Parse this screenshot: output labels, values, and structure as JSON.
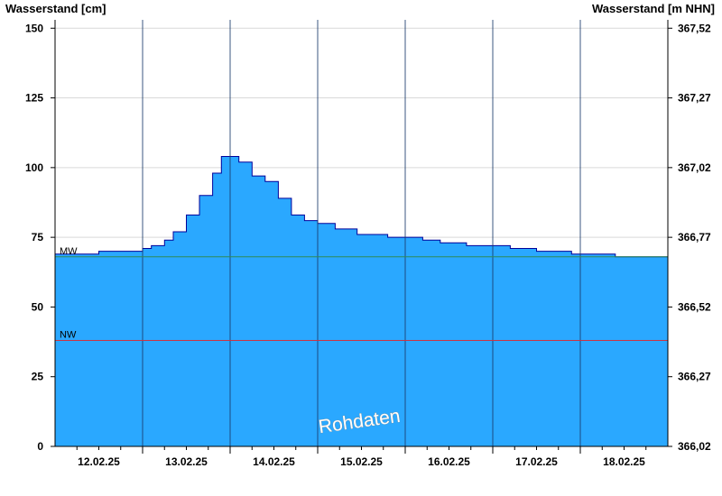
{
  "chart_data": {
    "type": "area",
    "ylabel_left": "Wasserstand [cm]",
    "ylabel_right": "Wasserstand [m NHN]",
    "watermark": "Rohdaten",
    "ylim": [
      0,
      153
    ],
    "left_ticks": [
      {
        "value": 0,
        "label": "0"
      },
      {
        "value": 25,
        "label": "25"
      },
      {
        "value": 50,
        "label": "50"
      },
      {
        "value": 75,
        "label": "75"
      },
      {
        "value": 100,
        "label": "100"
      },
      {
        "value": 125,
        "label": "125"
      },
      {
        "value": 150,
        "label": "150"
      }
    ],
    "right_ticks": [
      {
        "value": 0,
        "label": "366,02"
      },
      {
        "value": 25,
        "label": "366,27"
      },
      {
        "value": 50,
        "label": "366,52"
      },
      {
        "value": 75,
        "label": "366,77"
      },
      {
        "value": 100,
        "label": "367,02"
      },
      {
        "value": 125,
        "label": "367,27"
      },
      {
        "value": 150,
        "label": "367,52"
      }
    ],
    "x_range_days": [
      0,
      7
    ],
    "day_labels": [
      "12.02.25",
      "13.02.25",
      "14.02.25",
      "15.02.25",
      "16.02.25",
      "17.02.25",
      "18.02.25"
    ],
    "day_label_positions_days": [
      0.5,
      1.5,
      2.5,
      3.5,
      4.5,
      5.5,
      6.5
    ],
    "day_boundaries_days": [
      1,
      2,
      3,
      4,
      5,
      6
    ],
    "reference_lines": [
      {
        "label": "MW",
        "value": 68,
        "color": "#2e8b57"
      },
      {
        "label": "NW",
        "value": 38,
        "color": "#cc3344"
      }
    ],
    "series": [
      {
        "fill": "#2aa8ff",
        "line": "#000099",
        "points": [
          [
            0.0,
            69
          ],
          [
            0.25,
            69
          ],
          [
            0.5,
            70
          ],
          [
            0.8,
            70
          ],
          [
            1.0,
            71
          ],
          [
            1.1,
            72
          ],
          [
            1.25,
            74
          ],
          [
            1.35,
            77
          ],
          [
            1.5,
            83
          ],
          [
            1.65,
            90
          ],
          [
            1.8,
            98
          ],
          [
            1.9,
            104
          ],
          [
            2.0,
            104
          ],
          [
            2.1,
            102
          ],
          [
            2.25,
            97
          ],
          [
            2.4,
            95
          ],
          [
            2.55,
            89
          ],
          [
            2.7,
            83
          ],
          [
            2.85,
            81
          ],
          [
            3.0,
            80
          ],
          [
            3.2,
            78
          ],
          [
            3.45,
            76
          ],
          [
            3.8,
            75
          ],
          [
            4.0,
            75
          ],
          [
            4.2,
            74
          ],
          [
            4.4,
            73
          ],
          [
            4.7,
            72
          ],
          [
            5.0,
            72
          ],
          [
            5.2,
            71
          ],
          [
            5.5,
            70
          ],
          [
            5.75,
            70
          ],
          [
            5.9,
            69
          ],
          [
            6.2,
            69
          ],
          [
            6.4,
            68
          ],
          [
            6.95,
            68
          ],
          [
            7.0,
            67
          ]
        ]
      }
    ]
  }
}
